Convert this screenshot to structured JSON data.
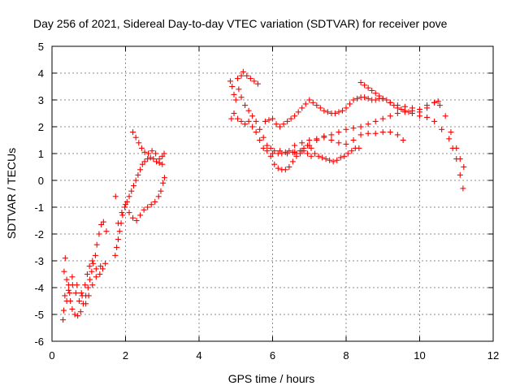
{
  "chart_data": {
    "type": "scatter",
    "title": "Day 256 of 2021, Sidereal Day-to-day VTEC variation (SDTVAR) for receiver pove",
    "xlabel": "GPS time / hours",
    "ylabel": "SDTVAR / TECUs",
    "xlim": [
      0,
      12
    ],
    "ylim": [
      -6,
      5
    ],
    "xticks": [
      "0",
      "2",
      "4",
      "6",
      "8",
      "10",
      "12"
    ],
    "yticks": [
      "-6",
      "-5",
      "-4",
      "-3",
      "-2",
      "-1",
      "0",
      "1",
      "2",
      "3",
      "4",
      "5"
    ],
    "grid": true,
    "marker": "plus",
    "color": "#ff0000",
    "series": [
      {
        "values": [
          [
            0.3,
            -5.2
          ],
          [
            0.32,
            -4.85
          ],
          [
            0.35,
            -4.3
          ],
          [
            0.33,
            -3.4
          ],
          [
            0.36,
            -2.9
          ],
          [
            0.4,
            -3.7
          ],
          [
            0.45,
            -4.1
          ],
          [
            0.5,
            -4.5
          ],
          [
            0.55,
            -4.8
          ],
          [
            0.62,
            -5.0
          ],
          [
            0.7,
            -5.05
          ],
          [
            0.78,
            -4.9
          ],
          [
            0.85,
            -4.6
          ],
          [
            0.92,
            -4.3
          ],
          [
            0.98,
            -4.0
          ],
          [
            1.03,
            -3.7
          ],
          [
            1.08,
            -3.4
          ],
          [
            1.12,
            -3.1
          ],
          [
            1.18,
            -2.8
          ],
          [
            1.22,
            -2.4
          ],
          [
            1.28,
            -2.0
          ],
          [
            1.34,
            -1.65
          ],
          [
            1.4,
            -1.55
          ],
          [
            0.4,
            -4.5
          ],
          [
            0.48,
            -4.2
          ],
          [
            0.56,
            -3.9
          ],
          [
            0.65,
            -4.2
          ],
          [
            0.74,
            -4.5
          ],
          [
            0.82,
            -4.3
          ],
          [
            0.9,
            -3.9
          ],
          [
            0.96,
            -3.5
          ],
          [
            1.02,
            -3.2
          ],
          [
            1.1,
            -3.0
          ],
          [
            1.2,
            -3.3
          ],
          [
            1.3,
            -3.5
          ],
          [
            1.38,
            -3.3
          ],
          [
            1.45,
            -3.1
          ],
          [
            1.48,
            -1.9
          ],
          [
            0.45,
            -3.9
          ],
          [
            0.55,
            -3.6
          ],
          [
            0.68,
            -3.9
          ],
          [
            0.8,
            -4.2
          ],
          [
            0.92,
            -4.6
          ],
          [
            1.0,
            -4.3
          ],
          [
            1.1,
            -3.9
          ],
          [
            1.2,
            -3.6
          ],
          [
            1.32,
            -3.2
          ],
          [
            1.73,
            -0.6
          ],
          [
            1.72,
            -2.8
          ],
          [
            1.76,
            -2.5
          ],
          [
            1.8,
            -2.2
          ],
          [
            1.84,
            -1.9
          ],
          [
            1.88,
            -1.6
          ],
          [
            1.92,
            -1.3
          ],
          [
            1.98,
            -1.0
          ],
          [
            2.04,
            -0.8
          ],
          [
            2.1,
            -0.6
          ],
          [
            2.16,
            -0.4
          ],
          [
            2.22,
            -0.2
          ],
          [
            2.28,
            0.0
          ],
          [
            2.34,
            0.2
          ],
          [
            2.4,
            0.4
          ],
          [
            2.46,
            0.6
          ],
          [
            2.52,
            0.7
          ],
          [
            2.6,
            0.8
          ],
          [
            2.68,
            0.85
          ],
          [
            2.76,
            0.8
          ],
          [
            2.84,
            0.7
          ],
          [
            2.92,
            0.65
          ],
          [
            3.0,
            0.6
          ],
          [
            1.8,
            -1.6
          ],
          [
            1.9,
            -1.2
          ],
          [
            2.0,
            -0.9
          ],
          [
            2.1,
            -1.2
          ],
          [
            2.2,
            -1.4
          ],
          [
            2.3,
            -1.5
          ],
          [
            2.4,
            -1.3
          ],
          [
            2.5,
            -1.1
          ],
          [
            2.6,
            -1.0
          ],
          [
            2.7,
            -0.9
          ],
          [
            2.8,
            -0.8
          ],
          [
            2.9,
            -0.6
          ],
          [
            2.96,
            -0.4
          ],
          [
            3.02,
            -0.1
          ],
          [
            3.06,
            0.1
          ],
          [
            2.2,
            1.8
          ],
          [
            2.28,
            1.6
          ],
          [
            2.36,
            1.4
          ],
          [
            2.44,
            1.2
          ],
          [
            2.52,
            1.05
          ],
          [
            2.62,
            1.0
          ],
          [
            2.72,
            1.1
          ],
          [
            2.82,
            1.0
          ],
          [
            2.92,
            0.8
          ],
          [
            3.0,
            0.9
          ],
          [
            3.05,
            1.0
          ]
        ]
      },
      {
        "values": [
          [
            4.85,
            3.7
          ],
          [
            4.9,
            3.5
          ],
          [
            4.95,
            3.2
          ],
          [
            5.0,
            3.0
          ],
          [
            4.88,
            2.3
          ],
          [
            4.95,
            2.5
          ],
          [
            5.05,
            2.3
          ],
          [
            5.15,
            2.2
          ],
          [
            5.25,
            2.1
          ],
          [
            5.35,
            2.2
          ],
          [
            5.45,
            2.0
          ],
          [
            5.55,
            1.8
          ],
          [
            5.65,
            1.5
          ],
          [
            5.75,
            1.2
          ],
          [
            5.85,
            1.1
          ],
          [
            5.95,
            0.9
          ],
          [
            6.05,
            0.6
          ],
          [
            6.15,
            0.45
          ],
          [
            6.25,
            0.4
          ],
          [
            6.35,
            0.4
          ],
          [
            6.45,
            0.5
          ],
          [
            6.55,
            0.7
          ],
          [
            6.65,
            0.9
          ],
          [
            6.75,
            1.0
          ],
          [
            6.85,
            1.1
          ],
          [
            6.95,
            1.0
          ],
          [
            7.05,
            0.9
          ],
          [
            5.05,
            3.8
          ],
          [
            5.15,
            3.9
          ],
          [
            5.2,
            4.05
          ],
          [
            5.3,
            3.9
          ],
          [
            5.4,
            3.8
          ],
          [
            5.5,
            3.7
          ],
          [
            5.6,
            3.6
          ],
          [
            5.08,
            3.4
          ],
          [
            5.15,
            3.1
          ],
          [
            5.25,
            2.8
          ],
          [
            5.35,
            2.6
          ],
          [
            5.45,
            2.4
          ],
          [
            5.55,
            2.2
          ],
          [
            5.65,
            1.9
          ],
          [
            5.75,
            1.6
          ],
          [
            5.85,
            1.3
          ],
          [
            5.95,
            1.2
          ],
          [
            6.05,
            1.1
          ],
          [
            6.15,
            1.0
          ],
          [
            6.25,
            1.0
          ],
          [
            6.35,
            1.05
          ],
          [
            6.45,
            1.1
          ],
          [
            6.55,
            1.05
          ],
          [
            6.65,
            1.0
          ],
          [
            6.75,
            1.1
          ],
          [
            6.85,
            1.2
          ],
          [
            6.95,
            1.3
          ],
          [
            7.05,
            1.2
          ],
          [
            7.15,
            1.0
          ],
          [
            7.25,
            0.9
          ],
          [
            7.35,
            0.85
          ],
          [
            7.45,
            0.8
          ],
          [
            7.55,
            0.75
          ],
          [
            7.65,
            0.7
          ],
          [
            7.75,
            0.75
          ],
          [
            7.85,
            0.85
          ],
          [
            7.95,
            0.9
          ],
          [
            8.05,
            1.0
          ],
          [
            8.15,
            1.1
          ],
          [
            8.25,
            1.2
          ],
          [
            8.35,
            1.2
          ],
          [
            5.8,
            2.2
          ],
          [
            5.9,
            2.25
          ],
          [
            6.0,
            2.3
          ],
          [
            6.1,
            2.1
          ],
          [
            6.2,
            2.0
          ],
          [
            6.3,
            2.1
          ],
          [
            6.4,
            2.2
          ],
          [
            6.5,
            2.3
          ],
          [
            6.6,
            2.4
          ],
          [
            6.7,
            2.55
          ],
          [
            6.8,
            2.7
          ],
          [
            6.9,
            2.85
          ],
          [
            7.0,
            3.0
          ],
          [
            7.1,
            2.9
          ],
          [
            7.2,
            2.8
          ],
          [
            7.3,
            2.7
          ],
          [
            7.4,
            2.6
          ],
          [
            7.5,
            2.55
          ],
          [
            7.6,
            2.5
          ],
          [
            7.7,
            2.5
          ],
          [
            7.8,
            2.55
          ],
          [
            7.9,
            2.6
          ],
          [
            8.0,
            2.7
          ],
          [
            8.1,
            2.85
          ],
          [
            8.2,
            3.0
          ],
          [
            8.3,
            3.05
          ],
          [
            8.4,
            3.1
          ],
          [
            8.5,
            3.1
          ],
          [
            8.6,
            3.05
          ],
          [
            8.7,
            3.0
          ],
          [
            8.8,
            3.0
          ],
          [
            8.9,
            3.05
          ],
          [
            9.0,
            3.05
          ],
          [
            9.1,
            3.0
          ],
          [
            9.2,
            2.9
          ],
          [
            9.3,
            2.8
          ],
          [
            9.4,
            2.7
          ],
          [
            9.5,
            2.65
          ],
          [
            9.6,
            2.6
          ],
          [
            9.7,
            2.55
          ],
          [
            9.8,
            2.5
          ],
          [
            6.0,
            1.0
          ],
          [
            6.2,
            1.1
          ],
          [
            6.4,
            1.0
          ],
          [
            6.6,
            1.05
          ],
          [
            6.8,
            1.1
          ],
          [
            7.0,
            1.3
          ],
          [
            7.2,
            1.5
          ],
          [
            7.4,
            1.65
          ],
          [
            7.6,
            1.5
          ],
          [
            7.8,
            1.4
          ],
          [
            8.0,
            1.35
          ],
          [
            8.2,
            1.5
          ],
          [
            8.4,
            1.7
          ],
          [
            8.6,
            1.75
          ],
          [
            8.8,
            1.75
          ],
          [
            9.0,
            1.8
          ],
          [
            9.2,
            1.8
          ],
          [
            9.4,
            1.7
          ],
          [
            9.55,
            1.5
          ],
          [
            6.6,
            1.3
          ],
          [
            6.8,
            1.4
          ],
          [
            7.0,
            1.5
          ],
          [
            7.2,
            1.55
          ],
          [
            7.4,
            1.6
          ],
          [
            7.6,
            1.7
          ],
          [
            7.8,
            1.8
          ],
          [
            8.0,
            1.9
          ],
          [
            8.2,
            1.95
          ],
          [
            8.4,
            2.0
          ],
          [
            8.6,
            2.1
          ],
          [
            8.8,
            2.2
          ],
          [
            9.0,
            2.3
          ],
          [
            9.2,
            2.4
          ],
          [
            9.4,
            2.5
          ],
          [
            9.6,
            2.55
          ],
          [
            9.8,
            2.6
          ],
          [
            10.0,
            2.65
          ],
          [
            10.2,
            2.8
          ],
          [
            10.4,
            2.9
          ],
          [
            10.5,
            2.95
          ],
          [
            8.4,
            3.65
          ],
          [
            8.5,
            3.55
          ],
          [
            8.6,
            3.45
          ],
          [
            8.7,
            3.35
          ],
          [
            8.8,
            3.25
          ],
          [
            8.9,
            3.15
          ],
          [
            9.0,
            3.05
          ],
          [
            9.2,
            2.9
          ],
          [
            9.4,
            2.8
          ],
          [
            9.6,
            2.75
          ],
          [
            9.8,
            2.7
          ],
          [
            10.0,
            2.55
          ],
          [
            10.2,
            2.35
          ],
          [
            10.4,
            2.2
          ],
          [
            10.6,
            1.9
          ],
          [
            10.8,
            1.55
          ],
          [
            10.9,
            1.2
          ],
          [
            11.0,
            0.8
          ],
          [
            11.1,
            0.2
          ],
          [
            11.18,
            -0.3
          ],
          [
            10.0,
            2.4
          ],
          [
            10.2,
            2.7
          ],
          [
            10.4,
            2.9
          ],
          [
            10.55,
            2.8
          ],
          [
            10.7,
            2.4
          ],
          [
            10.85,
            1.8
          ],
          [
            11.0,
            1.2
          ],
          [
            11.1,
            0.8
          ],
          [
            11.2,
            0.5
          ]
        ]
      }
    ]
  }
}
